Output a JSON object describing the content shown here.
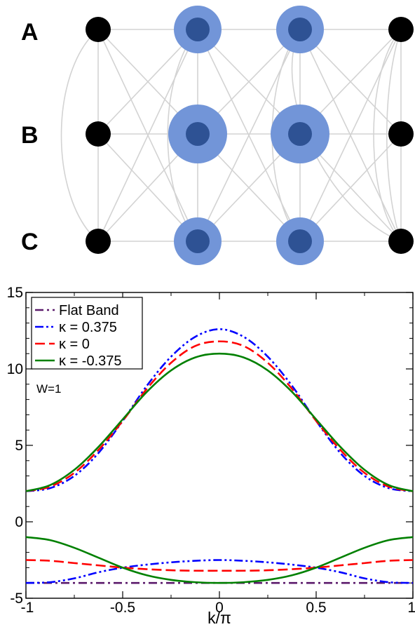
{
  "network": {
    "row_labels": [
      "A",
      "B",
      "C"
    ],
    "columns": 4,
    "highlighted_columns": [
      1,
      2
    ],
    "node_color": "#000000",
    "highlight_inner_color": "#2e5294",
    "highlight_halo_color": "#7295d8",
    "edge_color": "#d3d3d3"
  },
  "chart_data": {
    "type": "line",
    "title": "",
    "xlabel": "k/π",
    "ylabel": "",
    "xlim": [
      -1,
      1
    ],
    "ylim": [
      -5,
      15
    ],
    "xticks": [
      -1,
      -0.5,
      0,
      0.5,
      1
    ],
    "xtick_labels": [
      "-1",
      "-0.5",
      "0",
      "0.5",
      "1"
    ],
    "yticks": [
      -5,
      0,
      5,
      10,
      15
    ],
    "ytick_labels": [
      "-5",
      "0",
      "5",
      "10",
      "15"
    ],
    "annotation": "W=1",
    "grid": false,
    "legend_position": "top-left",
    "x": [
      -1,
      -0.875,
      -0.75,
      -0.625,
      -0.5,
      -0.375,
      -0.25,
      -0.125,
      0,
      0.125,
      0.25,
      0.375,
      0.5,
      0.625,
      0.75,
      0.875,
      1
    ],
    "series": [
      {
        "name": "Flat Band",
        "color": "#5b1a6b",
        "dash": "dashdot",
        "band": "flat",
        "values": [
          -4,
          -4,
          -4,
          -4,
          -4,
          -4,
          -4,
          -4,
          -4,
          -4,
          -4,
          -4,
          -4,
          -4,
          -4,
          -4,
          -4
        ]
      },
      {
        "name": "κ = 0.375",
        "color": "#0000ff",
        "dash": "dashdotdot",
        "band": "upper",
        "values": [
          2,
          2.2,
          3.0,
          4.5,
          6.6,
          8.9,
          10.8,
          12.1,
          12.6,
          12.1,
          10.8,
          8.9,
          6.6,
          4.5,
          3.0,
          2.2,
          2
        ]
      },
      {
        "name": "κ = 0.375",
        "color": "#0000ff",
        "dash": "dashdotdot",
        "band": "lower",
        "values": [
          -4,
          -3.95,
          -3.7,
          -3.3,
          -3.0,
          -2.8,
          -2.65,
          -2.55,
          -2.5,
          -2.55,
          -2.65,
          -2.8,
          -3.0,
          -3.3,
          -3.7,
          -3.95,
          -4
        ]
      },
      {
        "name": "κ = 0",
        "color": "#ff0000",
        "dash": "dash",
        "band": "upper",
        "values": [
          2,
          2.3,
          3.2,
          4.7,
          6.6,
          8.7,
          10.4,
          11.5,
          11.8,
          11.5,
          10.4,
          8.7,
          6.6,
          4.7,
          3.2,
          2.3,
          2
        ]
      },
      {
        "name": "κ = 0",
        "color": "#ff0000",
        "dash": "dash",
        "band": "lower",
        "values": [
          -2.5,
          -2.55,
          -2.7,
          -2.85,
          -3.0,
          -3.1,
          -3.17,
          -3.2,
          -3.2,
          -3.2,
          -3.17,
          -3.1,
          -3.0,
          -2.85,
          -2.7,
          -2.55,
          -2.5
        ]
      },
      {
        "name": "κ = -0.375",
        "color": "#008000",
        "dash": "solid",
        "band": "upper",
        "values": [
          2,
          2.4,
          3.4,
          4.9,
          6.7,
          8.5,
          9.9,
          10.75,
          11.0,
          10.75,
          9.9,
          8.5,
          6.7,
          4.9,
          3.4,
          2.4,
          2
        ]
      },
      {
        "name": "κ = -0.375",
        "color": "#008000",
        "dash": "solid",
        "band": "lower",
        "values": [
          -1,
          -1.2,
          -1.7,
          -2.35,
          -3.0,
          -3.5,
          -3.8,
          -3.95,
          -4.0,
          -3.95,
          -3.8,
          -3.5,
          -3.0,
          -2.35,
          -1.7,
          -1.2,
          -1
        ]
      }
    ],
    "legend": [
      {
        "label": "Flat Band",
        "color": "#5b1a6b",
        "dash": "dashdot"
      },
      {
        "label": "κ = 0.375",
        "color": "#0000ff",
        "dash": "dashdotdot"
      },
      {
        "label": "κ = 0",
        "color": "#ff0000",
        "dash": "dash"
      },
      {
        "label": "κ = -0.375",
        "color": "#008000",
        "dash": "solid"
      }
    ]
  }
}
